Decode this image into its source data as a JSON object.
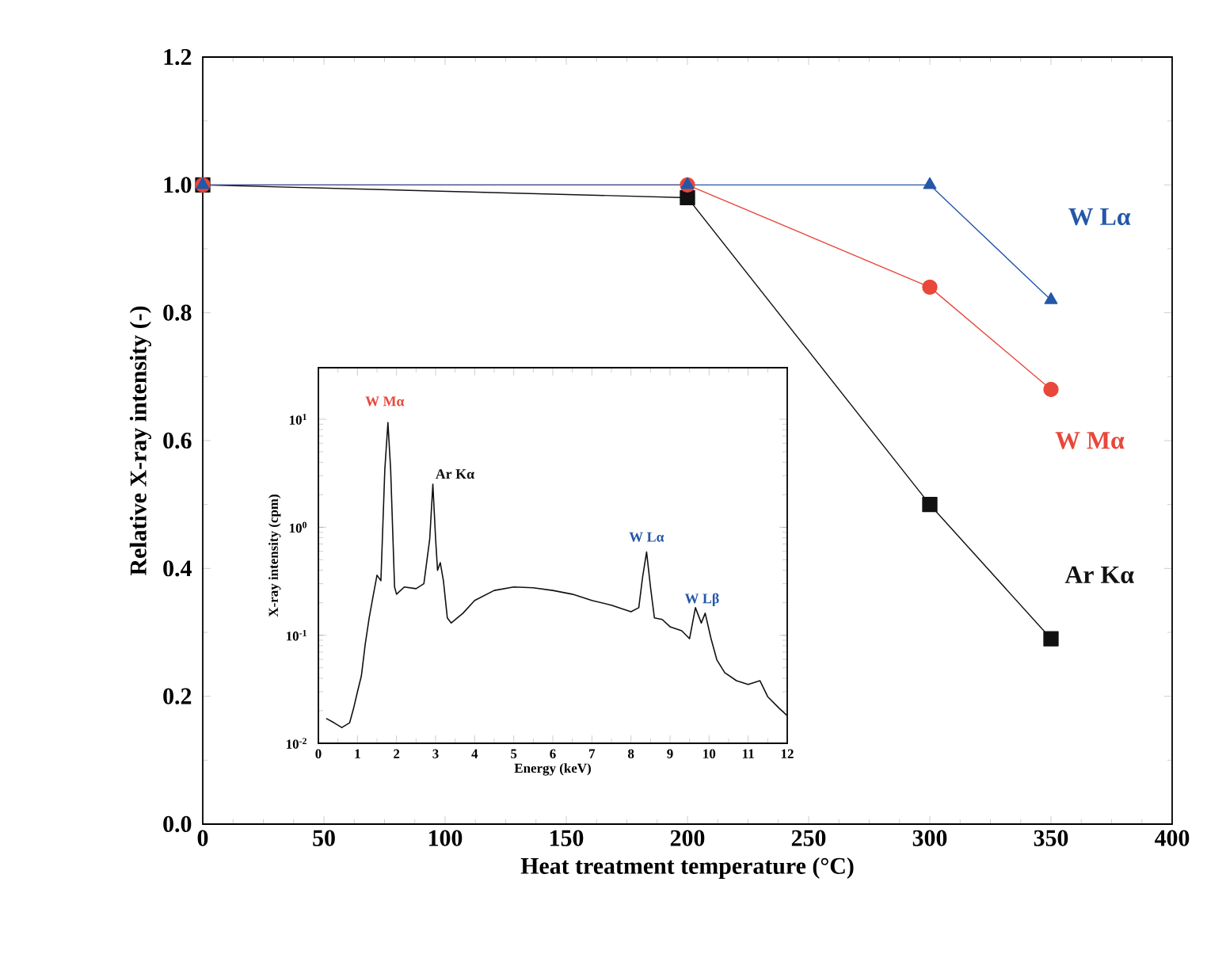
{
  "chart_data": [
    {
      "type": "line",
      "xlabel": "Heat treatment temperature (°C)",
      "ylabel": "Relative X-ray intensity (-)",
      "x": [
        0,
        200,
        300,
        350
      ],
      "series": [
        {
          "name": "Ar Kα",
          "color": "#111111",
          "marker": "square",
          "values": [
            1.0,
            0.98,
            0.5,
            0.29
          ]
        },
        {
          "name": "W Mα",
          "color": "#e8473a",
          "marker": "circle",
          "values": [
            1.0,
            1.0,
            0.84,
            0.68
          ]
        },
        {
          "name": "W Lα",
          "color": "#2457a8",
          "marker": "triangle",
          "values": [
            1.0,
            1.0,
            1.0,
            0.82
          ]
        }
      ],
      "xlim": [
        0,
        400
      ],
      "xticks": [
        0,
        50,
        100,
        150,
        200,
        250,
        300,
        350,
        400
      ],
      "ylim": [
        0,
        1.2
      ],
      "yticks": [
        {
          "value": 0,
          "label": "0.0"
        },
        {
          "value": 0.2,
          "label": "0.2"
        },
        {
          "value": 0.4,
          "label": "0.4"
        },
        {
          "value": 0.6,
          "label": "0.6"
        },
        {
          "value": 0.8,
          "label": "0.8"
        },
        {
          "value": 1.0,
          "label": "1.0"
        },
        {
          "value": 1.2,
          "label": "1.2"
        }
      ],
      "grid": false
    },
    {
      "type": "line",
      "xlabel": "Energy (keV)",
      "ylabel": "X-ray intensity (cpm)",
      "log": "y",
      "x": [
        0.2,
        0.4,
        0.6,
        0.8,
        0.9,
        1.0,
        1.1,
        1.2,
        1.3,
        1.4,
        1.5,
        1.6,
        1.7,
        1.78,
        1.85,
        1.95,
        2.0,
        2.2,
        2.5,
        2.7,
        2.85,
        2.93,
        3.0,
        3.05,
        3.12,
        3.2,
        3.3,
        3.4,
        3.7,
        4.0,
        4.5,
        5.0,
        5.5,
        6.0,
        6.5,
        7.0,
        7.5,
        8.0,
        8.2,
        8.3,
        8.4,
        8.5,
        8.6,
        8.8,
        9.0,
        9.3,
        9.5,
        9.65,
        9.8,
        9.9,
        10.05,
        10.2,
        10.4,
        10.7,
        11.0,
        11.3,
        11.5,
        11.8,
        12.0
      ],
      "series": [
        {
          "color": "#111111",
          "marker": "none",
          "values": [
            0.017,
            0.0155,
            0.014,
            0.0155,
            0.021,
            0.03,
            0.042,
            0.083,
            0.145,
            0.23,
            0.36,
            0.32,
            3.4,
            9.3,
            3.4,
            0.28,
            0.24,
            0.28,
            0.27,
            0.3,
            0.78,
            2.5,
            0.78,
            0.4,
            0.47,
            0.32,
            0.145,
            0.13,
            0.16,
            0.21,
            0.26,
            0.28,
            0.275,
            0.26,
            0.24,
            0.21,
            0.19,
            0.165,
            0.18,
            0.35,
            0.59,
            0.28,
            0.145,
            0.14,
            0.12,
            0.11,
            0.093,
            0.18,
            0.13,
            0.16,
            0.093,
            0.059,
            0.045,
            0.038,
            0.035,
            0.038,
            0.027,
            0.021,
            0.018
          ]
        }
      ],
      "annotations": [
        {
          "text": "W Mα",
          "x": 1.78,
          "y": 9.3
        },
        {
          "text": "Ar Kα",
          "x": 2.93,
          "y": 2.5
        },
        {
          "text": "W Lα",
          "x": 8.4,
          "y": 0.59
        },
        {
          "text": "W Lβ",
          "x": 9.9,
          "y": 0.16
        }
      ],
      "xlim": [
        0,
        12
      ],
      "xticks": [
        0,
        1,
        2,
        3,
        4,
        5,
        6,
        7,
        8,
        9,
        10,
        11,
        12
      ],
      "ylim": [
        0.01,
        30
      ],
      "yticks": [
        {
          "value": 0.01,
          "label": "10$^{-2}$"
        },
        {
          "value": 0.1,
          "label": "10$^{-1}$"
        },
        {
          "value": 1,
          "label": "10$^{0}$"
        },
        {
          "value": 10,
          "label": "10$^{1}$"
        }
      ],
      "grid": false
    }
  ]
}
